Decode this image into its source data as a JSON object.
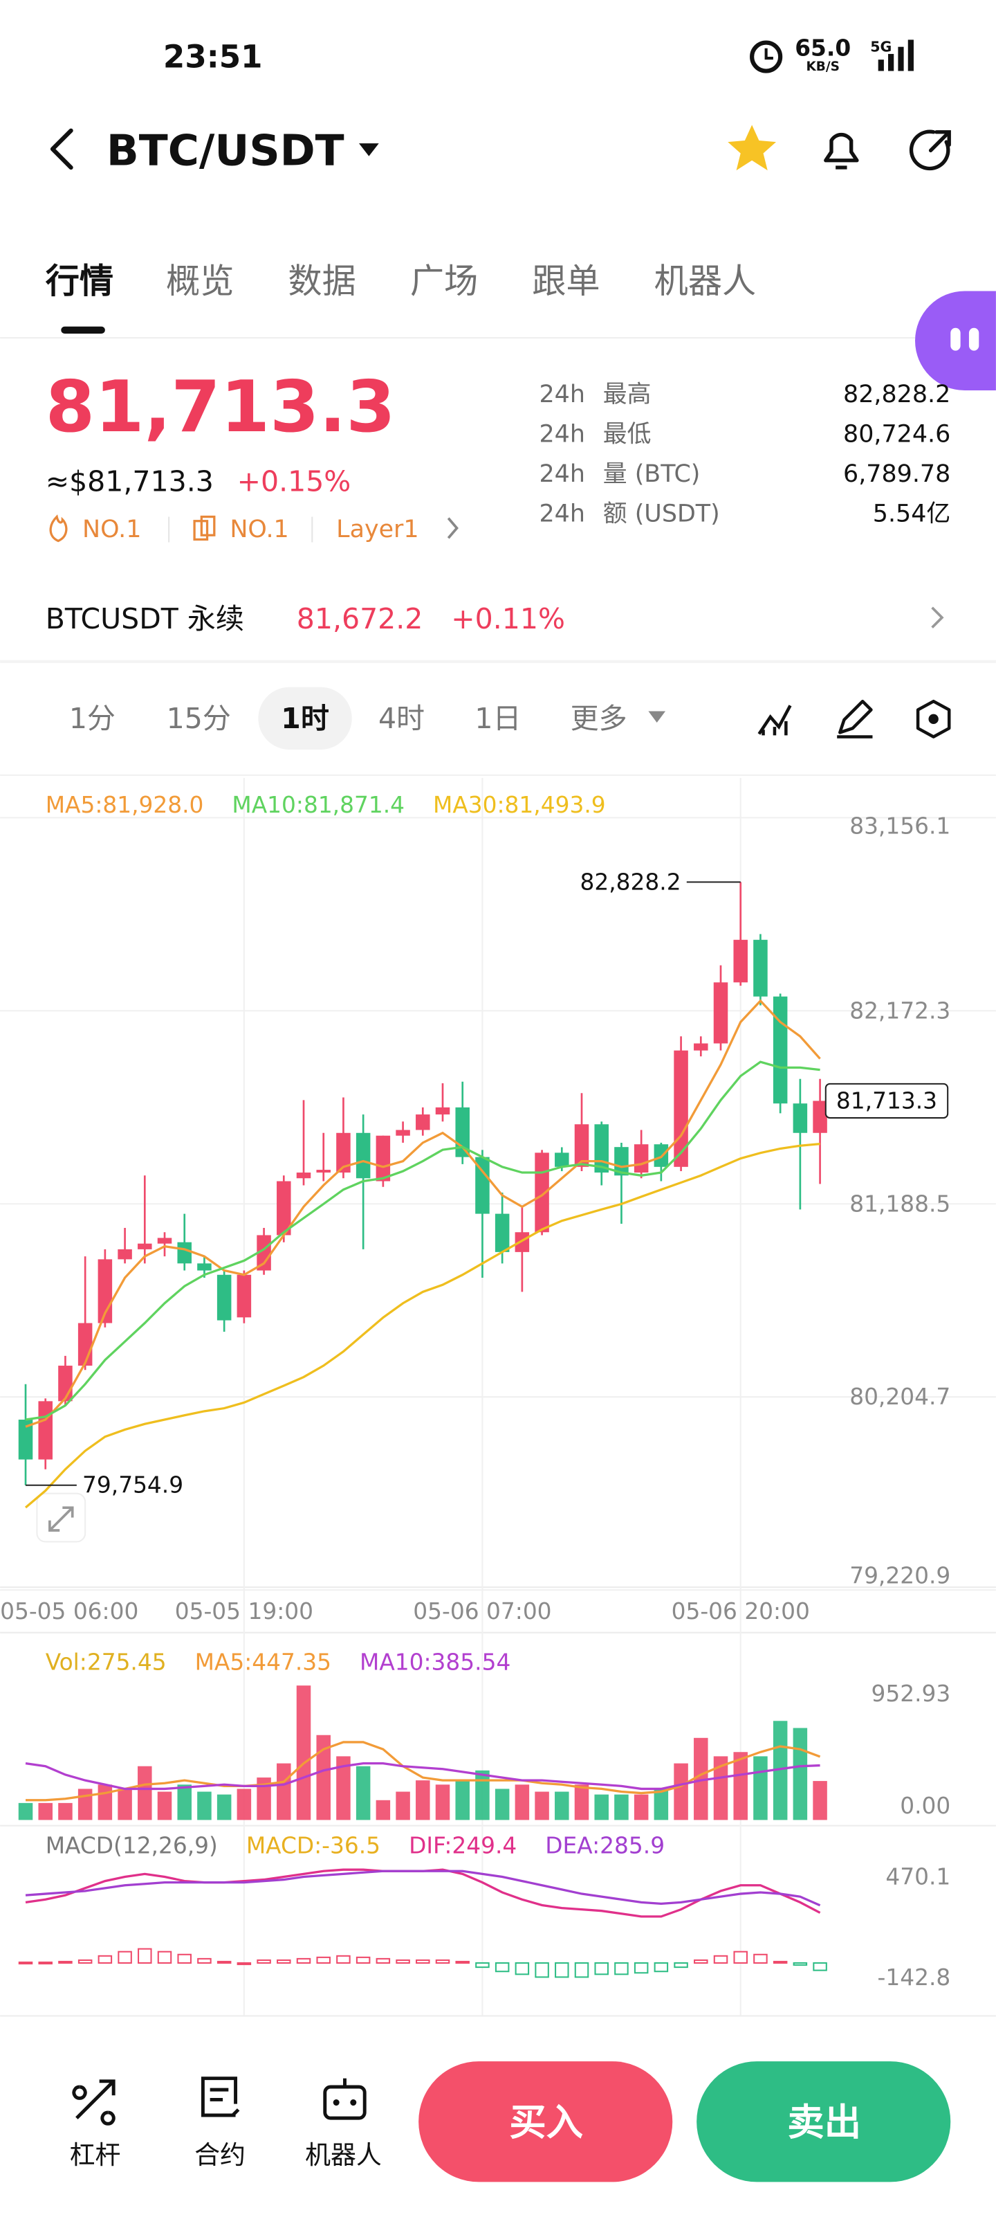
{
  "status_bar": {
    "time": "23:51",
    "speed": "65.0",
    "speed_unit": "KB/S",
    "network": "5G"
  },
  "header": {
    "title": "BTC/USDT"
  },
  "tabs": [
    "行情",
    "概览",
    "数据",
    "广场",
    "跟单",
    "机器人"
  ],
  "price": {
    "last": "81,713.3",
    "usd": "≈$81,713.3",
    "change": "+0.15%",
    "tags": [
      "NO.1",
      "NO.1",
      "Layer1"
    ]
  },
  "stats": [
    {
      "period": "24h",
      "label": "最高",
      "value": "82,828.2"
    },
    {
      "period": "24h",
      "label": "最低",
      "value": "80,724.6"
    },
    {
      "period": "24h",
      "label": "量 (BTC)",
      "value": "6,789.78"
    },
    {
      "period": "24h",
      "label": "额 (USDT)",
      "value": "5.54亿"
    }
  ],
  "perpetual": {
    "name": "BTCUSDT 永续",
    "price": "81,672.2",
    "change": "+0.11%"
  },
  "intervals": [
    "1分",
    "15分",
    "1时",
    "4时",
    "1日",
    "更多"
  ],
  "chart_data": [
    {
      "type": "candlestick",
      "up_color": "#ef4a6b",
      "down_color": "#2ebd85",
      "grid": true,
      "ylim": [
        79220.9,
        83156.1
      ],
      "yticks": [
        {
          "value": 83156.1,
          "label": "83,156.1"
        },
        {
          "value": 82172.3,
          "label": "82,172.3"
        },
        {
          "value": 81188.5,
          "label": "81,188.5"
        },
        {
          "value": 80204.7,
          "label": "80,204.7"
        },
        {
          "value": 79220.9,
          "label": "79,220.9"
        }
      ],
      "xticks": [
        {
          "value": -2,
          "label": "05-05 06:00"
        },
        {
          "value": 11,
          "label": "05-05 19:00"
        },
        {
          "value": 23,
          "label": "05-06 07:00"
        },
        {
          "value": 36,
          "label": "05-06 20:00"
        }
      ],
      "open": [
        80089,
        79886,
        80183,
        80364,
        80581,
        80906,
        80957,
        80986,
        80993,
        80885,
        80827,
        80610,
        80849,
        81029,
        81319,
        81348,
        81348,
        81550,
        81304,
        81536,
        81565,
        81644,
        81680,
        81427,
        81138,
        80943,
        81044,
        81449,
        81377,
        81594,
        81478,
        81348,
        81492,
        81377,
        81970,
        82006,
        82317,
        82534,
        82245,
        81700,
        81550
      ],
      "high": [
        80270,
        80197,
        80414,
        80921,
        80957,
        81066,
        81333,
        81044,
        81138,
        80921,
        80849,
        80849,
        81066,
        81333,
        81717,
        81550,
        81731,
        81644,
        81536,
        81608,
        81680,
        81803,
        81811,
        81463,
        81246,
        81174,
        81463,
        81477,
        81753,
        81608,
        81500,
        81565,
        81500,
        82042,
        82042,
        82404,
        82828.2,
        82563,
        82260,
        81825,
        81825
      ],
      "low": [
        79754.9,
        79836,
        80161,
        80342,
        80559,
        80885,
        80885,
        80921,
        80849,
        80812,
        80537,
        80580,
        80827,
        80993,
        81283,
        81304,
        81319,
        80957,
        81275,
        81500,
        81536,
        81608,
        81391,
        80812,
        80885,
        80740,
        81029,
        81355,
        81355,
        81283,
        81087,
        81319,
        81304,
        81355,
        81940,
        81970,
        82300,
        82200,
        81650,
        81160,
        81290
      ],
      "close": [
        79886,
        80183,
        80364,
        80581,
        80906,
        80957,
        80986,
        81015,
        80885,
        80849,
        80595,
        80827,
        81029,
        81304,
        81348,
        81362,
        81550,
        81319,
        81536,
        81565,
        81644,
        81680,
        81427,
        81138,
        80943,
        81044,
        81449,
        81377,
        81594,
        81348,
        81333,
        81492,
        81377,
        81970,
        82006,
        82317,
        82534,
        82245,
        81700,
        81550,
        81713.3
      ],
      "series": [
        {
          "name": "MA5:81,928.0",
          "color": "#f29b38",
          "values": [
            80053,
            80089,
            80197,
            80378,
            80632,
            80812,
            80921,
            80972,
            80957,
            80921,
            80849,
            80827,
            80885,
            81029,
            81174,
            81283,
            81377,
            81406,
            81377,
            81406,
            81500,
            81550,
            81478,
            81355,
            81232,
            81174,
            81232,
            81319,
            81406,
            81406,
            81377,
            81391,
            81427,
            81536,
            81717,
            81898,
            82115,
            82223,
            82115,
            82042,
            81928.0
          ]
        },
        {
          "name": "MA10:81,871.4",
          "color": "#5fd35f",
          "values": [
            80089,
            80104,
            80161,
            80270,
            80393,
            80487,
            80581,
            80682,
            80769,
            80827,
            80863,
            80899,
            80957,
            81044,
            81116,
            81188,
            81261,
            81304,
            81319,
            81355,
            81406,
            81464,
            81478,
            81427,
            81377,
            81348,
            81348,
            81377,
            81391,
            81377,
            81348,
            81333,
            81348,
            81449,
            81572,
            81717,
            81840,
            81912,
            81883,
            81883,
            81871.4
          ]
        },
        {
          "name": "MA30:81,493.9",
          "color": "#efbe1e",
          "values": [
            79641,
            79727,
            79836,
            79930,
            80002,
            80038,
            80067,
            80089,
            80111,
            80132,
            80147,
            80176,
            80219,
            80262,
            80306,
            80364,
            80436,
            80523,
            80609,
            80682,
            80740,
            80776,
            80827,
            80885,
            80943,
            81001,
            81058,
            81102,
            81131,
            81160,
            81188,
            81225,
            81261,
            81297,
            81333,
            81377,
            81420,
            81448,
            81470,
            81485,
            81493.9
          ]
        }
      ],
      "annotations": [
        {
          "index": 36,
          "value": 82828.2,
          "label": "82,828.2"
        },
        {
          "index": 0,
          "value": 79754.9,
          "label": "79,754.9"
        }
      ],
      "last_price": {
        "value": 81713.3,
        "label": "81,713.3"
      }
    },
    {
      "type": "bar",
      "title": "Vol:275.45",
      "title_color": "#e0b020",
      "grid": false,
      "ylim": [
        0,
        952.93
      ],
      "yticks": [
        952.93,
        {
          "value": 0,
          "label": "0.00"
        }
      ],
      "values": [
        120,
        120,
        120,
        220,
        250,
        220,
        380,
        200,
        250,
        200,
        180,
        220,
        300,
        400,
        950,
        600,
        450,
        380,
        140,
        200,
        280,
        250,
        280,
        350,
        220,
        250,
        200,
        200,
        250,
        180,
        180,
        180,
        220,
        400,
        580,
        450,
        480,
        450,
        700,
        650,
        275.45
      ],
      "series": [
        {
          "name": "MA5:447.35",
          "color": "#f29b38",
          "values": [
            140,
            140,
            150,
            170,
            190,
            220,
            250,
            260,
            280,
            260,
            240,
            240,
            250,
            270,
            400,
            500,
            550,
            550,
            500,
            380,
            300,
            280,
            280,
            280,
            280,
            280,
            260,
            250,
            230,
            220,
            200,
            190,
            200,
            240,
            320,
            380,
            430,
            480,
            520,
            500,
            447.35
          ]
        },
        {
          "name": "MA10:385.54",
          "color": "#b23fcf",
          "values": [
            400,
            380,
            320,
            280,
            250,
            220,
            220,
            220,
            230,
            240,
            250,
            240,
            240,
            250,
            300,
            350,
            380,
            400,
            400,
            380,
            370,
            360,
            340,
            320,
            300,
            280,
            280,
            270,
            260,
            250,
            240,
            220,
            220,
            250,
            280,
            300,
            320,
            340,
            360,
            380,
            385.54
          ]
        }
      ]
    },
    {
      "type": "macd",
      "title": "MACD(12,26,9)",
      "grid": false,
      "histogram_name": "MACD:-36.5",
      "histogram_color": "#e8b020",
      "ylim": [
        -142.8,
        470.1
      ],
      "yticks": [
        470.1,
        -142.8
      ],
      "histogram": [
        3.5,
        3.5,
        7,
        14,
        35,
        56,
        70,
        56,
        42,
        21,
        7,
        0,
        14,
        14,
        21,
        28,
        35,
        28,
        21,
        14,
        14,
        14,
        7,
        -21,
        -42,
        -56,
        -70,
        -70,
        -70,
        -56,
        -56,
        -49,
        -42,
        -21,
        14,
        35,
        56,
        42,
        7,
        -10,
        -36.5
      ],
      "series": [
        {
          "name": "DIF:249.4",
          "color": "#e0308a",
          "values": [
            301.0,
            315.1,
            336.2,
            371.5,
            406.7,
            427.8,
            441.9,
            427.8,
            406.7,
            399.6,
            399.6,
            406.7,
            413.7,
            427.8,
            441.9,
            456.0,
            463.1,
            463.1,
            456.0,
            456.0,
            456.0,
            463.1,
            441.9,
            399.6,
            350.3,
            315.1,
            286.9,
            272.8,
            265.8,
            258.7,
            244.7,
            230.6,
            230.6,
            265.8,
            315.1,
            357.4,
            385.6,
            385.6,
            343.3,
            301.0,
            249.4
          ]
        },
        {
          "name": "DEA:285.9",
          "color": "#a23fd0",
          "values": [
            336.2,
            343.3,
            350.3,
            357.4,
            371.5,
            385.6,
            392.6,
            399.6,
            399.6,
            399.6,
            399.6,
            399.6,
            406.7,
            413.7,
            427.8,
            434.9,
            441.9,
            449.0,
            456.0,
            456.0,
            456.0,
            456.0,
            456.0,
            441.9,
            427.8,
            406.7,
            385.6,
            364.4,
            343.3,
            329.2,
            315.1,
            301.0,
            294.0,
            301.0,
            315.1,
            329.2,
            343.3,
            350.3,
            343.3,
            329.2,
            285.9
          ]
        }
      ]
    }
  ],
  "bottom_bar": {
    "actions": [
      "杠杆",
      "合约",
      "机器人"
    ],
    "buy": "买入",
    "sell": "卖出"
  }
}
